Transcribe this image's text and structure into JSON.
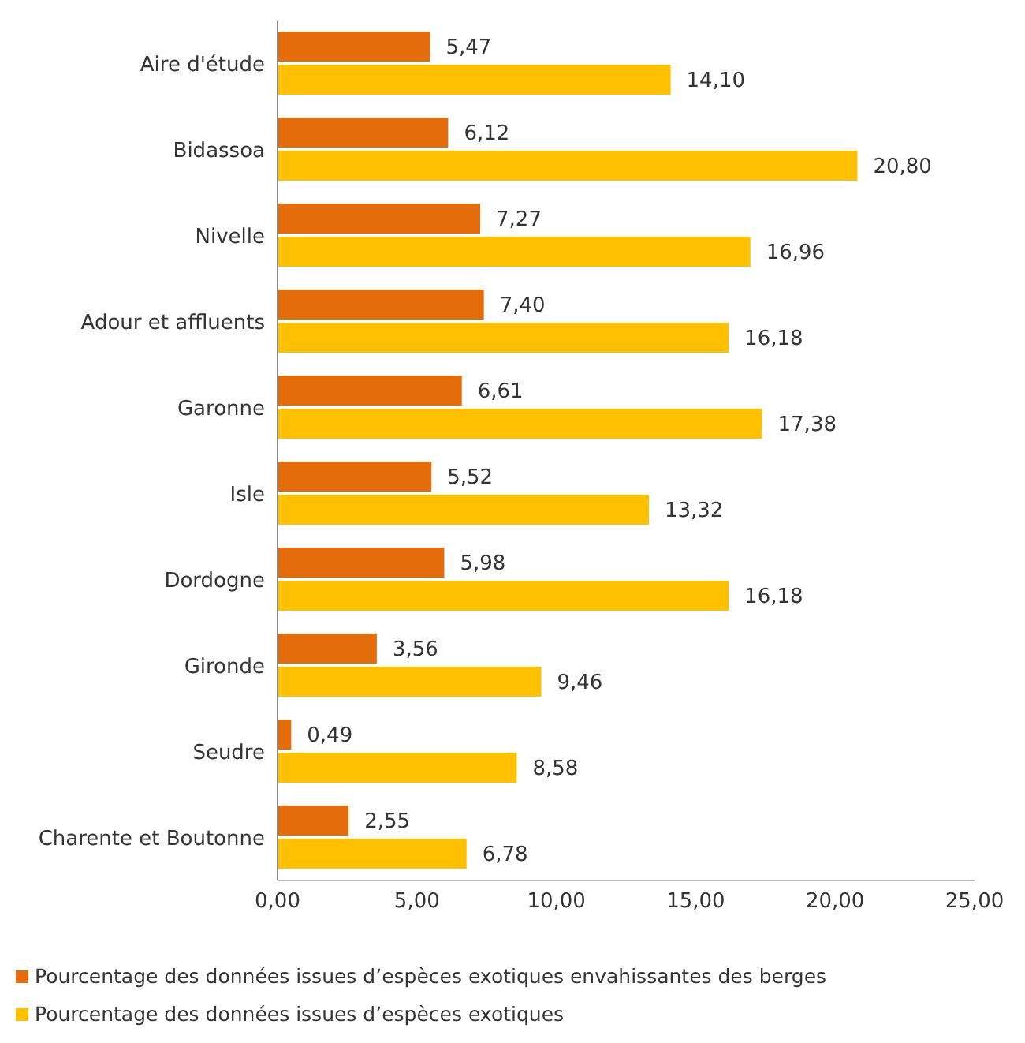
{
  "chart_data": {
    "type": "bar",
    "orientation": "horizontal",
    "categories": [
      "Aire d'étude",
      "Bidassoa",
      "Nivelle",
      "Adour et affluents",
      "Garonne",
      "Isle",
      "Dordogne",
      "Gironde",
      "Seudre",
      "Charente et Boutonne"
    ],
    "series": [
      {
        "name": "Pourcentage des données issues d’espèces exotiques envahissantes des berges",
        "color": "#e46c0a",
        "values": [
          5.47,
          6.12,
          7.27,
          7.4,
          6.61,
          5.52,
          5.98,
          3.56,
          0.49,
          2.55
        ],
        "value_labels": [
          "5,47",
          "6,12",
          "7,27",
          "7,40",
          "6,61",
          "5,52",
          "5,98",
          "3,56",
          "0,49",
          "2,55"
        ]
      },
      {
        "name": "Pourcentage des données issues d’espèces exotiques",
        "color": "#ffc000",
        "values": [
          14.1,
          20.8,
          16.96,
          16.18,
          17.38,
          13.32,
          16.18,
          9.46,
          8.58,
          6.78
        ],
        "value_labels": [
          "14,10",
          "20,80",
          "16,96",
          "16,18",
          "17,38",
          "13,32",
          "16,18",
          "9,46",
          "8,58",
          "6,78"
        ]
      }
    ],
    "xlim": [
      0,
      25
    ],
    "xticks": [
      {
        "value": 0,
        "label": "0,00"
      },
      {
        "value": 5,
        "label": "5,00"
      },
      {
        "value": 10,
        "label": "10,00"
      },
      {
        "value": 15,
        "label": "15,00"
      },
      {
        "value": 20,
        "label": "20,00"
      },
      {
        "value": 25,
        "label": "25,00"
      }
    ],
    "grid": false,
    "legend": "bottom"
  }
}
